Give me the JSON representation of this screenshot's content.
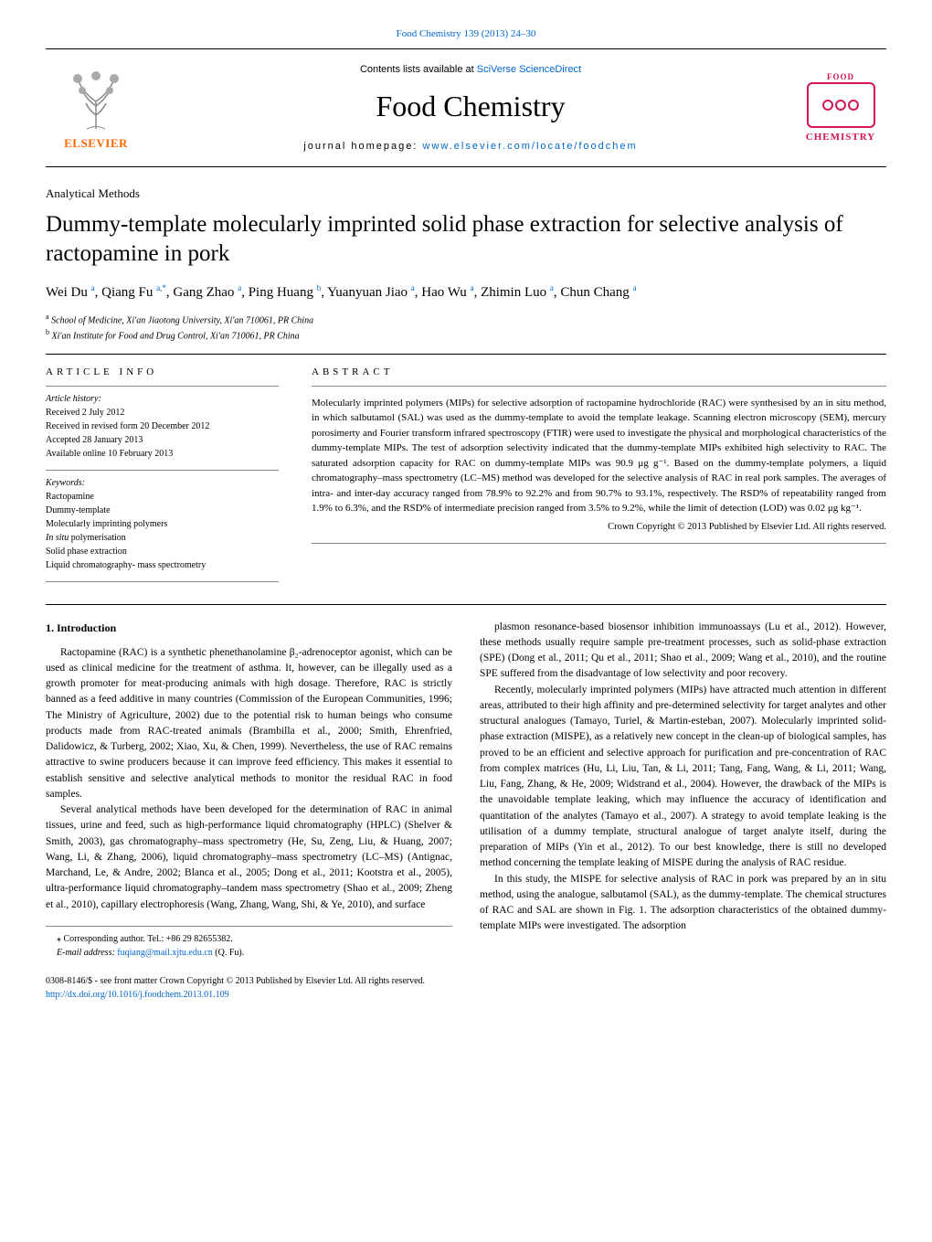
{
  "page_ref": "Food Chemistry 139 (2013) 24–30",
  "header": {
    "contents_line_prefix": "Contents lists available at ",
    "contents_line_link": "SciVerse ScienceDirect",
    "journal_title": "Food Chemistry",
    "homepage_prefix": "journal homepage: ",
    "homepage_link": "www.elsevier.com/locate/foodchem",
    "elsevier_label": "ELSEVIER",
    "fc_top": "FOOD",
    "fc_bottom": "CHEMISTRY"
  },
  "section_label": "Analytical Methods",
  "article_title": "Dummy-template molecularly imprinted solid phase extraction for selective analysis of ractopamine in pork",
  "authors_html": "Wei Du <sup>a</sup>, Qiang Fu <sup>a,*</sup>, Gang Zhao <sup>a</sup>, Ping Huang <sup>b</sup>, Yuanyuan Jiao <sup>a</sup>, Hao Wu <sup>a</sup>, Zhimin Luo <sup>a</sup>, Chun Chang <sup>a</sup>",
  "affiliations": {
    "a": "School of Medicine, Xi'an Jiaotong University, Xi'an 710061, PR China",
    "b": "Xi'an Institute for Food and Drug Control, Xi'an 710061, PR China"
  },
  "meta": {
    "article_info_label": "article info",
    "history_title": "Article history:",
    "history_lines": [
      "Received 2 July 2012",
      "Received in revised form 20 December 2012",
      "Accepted 28 January 2013",
      "Available online 10 February 2013"
    ],
    "keywords_title": "Keywords:",
    "keywords": [
      "Ractopamine",
      "Dummy-template",
      "Molecularly imprinting polymers",
      "In situ polymerisation",
      "Solid phase extraction",
      "Liquid chromatography- mass spectrometry"
    ]
  },
  "abstract": {
    "label": "abstract",
    "text": "Molecularly imprinted polymers (MIPs) for selective adsorption of ractopamine hydrochloride (RAC) were synthesised by an in situ method, in which salbutamol (SAL) was used as the dummy-template to avoid the template leakage. Scanning electron microscopy (SEM), mercury porosimerty and Fourier transform infrared spectroscopy (FTIR) were used to investigate the physical and morphological characteristics of the dummy-template MIPs. The test of adsorption selectivity indicated that the dummy-template MIPs exhibited high selectivity to RAC. The saturated adsorption capacity for RAC on dummy-template MIPs was 90.9 μg g⁻¹. Based on the dummy-template polymers, a liquid chromatography–mass spectrometry (LC–MS) method was developed for the selective analysis of RAC in real pork samples. The averages of intra- and inter-day accuracy ranged from 78.9% to 92.2% and from 90.7% to 93.1%, respectively. The RSD% of repeatability ranged from 1.9% to 6.3%, and the RSD% of intermediate precision ranged from 3.5% to 9.2%, while the limit of detection (LOD) was 0.02 μg kg⁻¹.",
    "copyright": "Crown Copyright © 2013 Published by Elsevier Ltd. All rights reserved."
  },
  "introduction": {
    "heading": "1. Introduction",
    "col1_p1": "Ractopamine (RAC) is a synthetic phenethanolamine β₂-adrenoceptor agonist, which can be used as clinical medicine for the treatment of asthma. It, however, can be illegally used as a growth promoter for meat-producing animals with high dosage. Therefore, RAC is strictly banned as a feed additive in many countries (Commission of the European Communities, 1996; The Ministry of Agriculture, 2002) due to the potential risk to human beings who consume products made from RAC-treated animals (Brambilla et al., 2000; Smith, Ehrenfried, Dalidowicz, & Turberg, 2002; Xiao, Xu, & Chen, 1999). Nevertheless, the use of RAC remains attractive to swine producers because it can improve feed efficiency. This makes it essential to establish sensitive and selective analytical methods to monitor the residual RAC in food samples.",
    "col1_p2": "Several analytical methods have been developed for the determination of RAC in animal tissues, urine and feed, such as high-performance liquid chromatography (HPLC) (Shelver & Smith, 2003), gas chromatography–mass spectrometry (He, Su, Zeng, Liu, & Huang, 2007; Wang, Li, & Zhang, 2006), liquid chromatography–mass spectrometry (LC–MS) (Antignac, Marchand, Le, & Andre, 2002; Blanca et al., 2005; Dong et al., 2011; Kootstra et al., 2005), ultra-performance liquid chromatography–tandem mass spectrometry (Shao et al., 2009; Zheng et al., 2010), capillary electrophoresis (Wang, Zhang, Wang, Shi, & Ye, 2010), and surface",
    "col2_p1": "plasmon resonance-based biosensor inhibition immunoassays (Lu et al., 2012). However, these methods usually require sample pre-treatment processes, such as solid-phase extraction (SPE) (Dong et al., 2011; Qu et al., 2011; Shao et al., 2009; Wang et al., 2010), and the routine SPE suffered from the disadvantage of low selectivity and poor recovery.",
    "col2_p2": "Recently, molecularly imprinted polymers (MIPs) have attracted much attention in different areas, attributed to their high affinity and pre-determined selectivity for target analytes and other structural analogues (Tamayo, Turiel, & Martin-esteban, 2007). Molecularly imprinted solid-phase extraction (MISPE), as a relatively new concept in the clean-up of biological samples, has proved to be an efficient and selective approach for purification and pre-concentration of RAC from complex matrices (Hu, Li, Liu, Tan, & Li, 2011; Tang, Fang, Wang, & Li, 2011; Wang, Liu, Fang, Zhang, & He, 2009; Widstrand et al., 2004). However, the drawback of the MIPs is the unavoidable template leaking, which may influence the accuracy of identification and quantitation of the analytes (Tamayo et al., 2007). A strategy to avoid template leaking is the utilisation of a dummy template, structural analogue of target analyte itself, during the preparation of MIPs (Yin et al., 2012). To our best knowledge, there is still no developed method concerning the template leaking of MISPE during the analysis of RAC residue.",
    "col2_p3": "In this study, the MISPE for selective analysis of RAC in pork was prepared by an in situ method, using the analogue, salbutamol (SAL), as the dummy-template. The chemical structures of RAC and SAL are shown in Fig. 1. The adsorption characteristics of the obtained dummy-template MIPs were investigated. The adsorption"
  },
  "corresponding": {
    "line1": "⁎ Corresponding author. Tel.: +86 29 82655382.",
    "line2_prefix": "E-mail address: ",
    "email": "fuqiang@mail.xjtu.edu.cn",
    "line2_suffix": " (Q. Fu)."
  },
  "footer": {
    "issn_line": "0308-8146/$ - see front matter Crown Copyright © 2013 Published by Elsevier Ltd. All rights reserved.",
    "doi": "http://dx.doi.org/10.1016/j.foodchem.2013.01.109"
  },
  "colors": {
    "link": "#0066cc",
    "elsevier_orange": "#ff6600",
    "fc_pink": "#d4145a",
    "text": "#000000",
    "bg": "#ffffff",
    "rule_light": "#888888"
  }
}
